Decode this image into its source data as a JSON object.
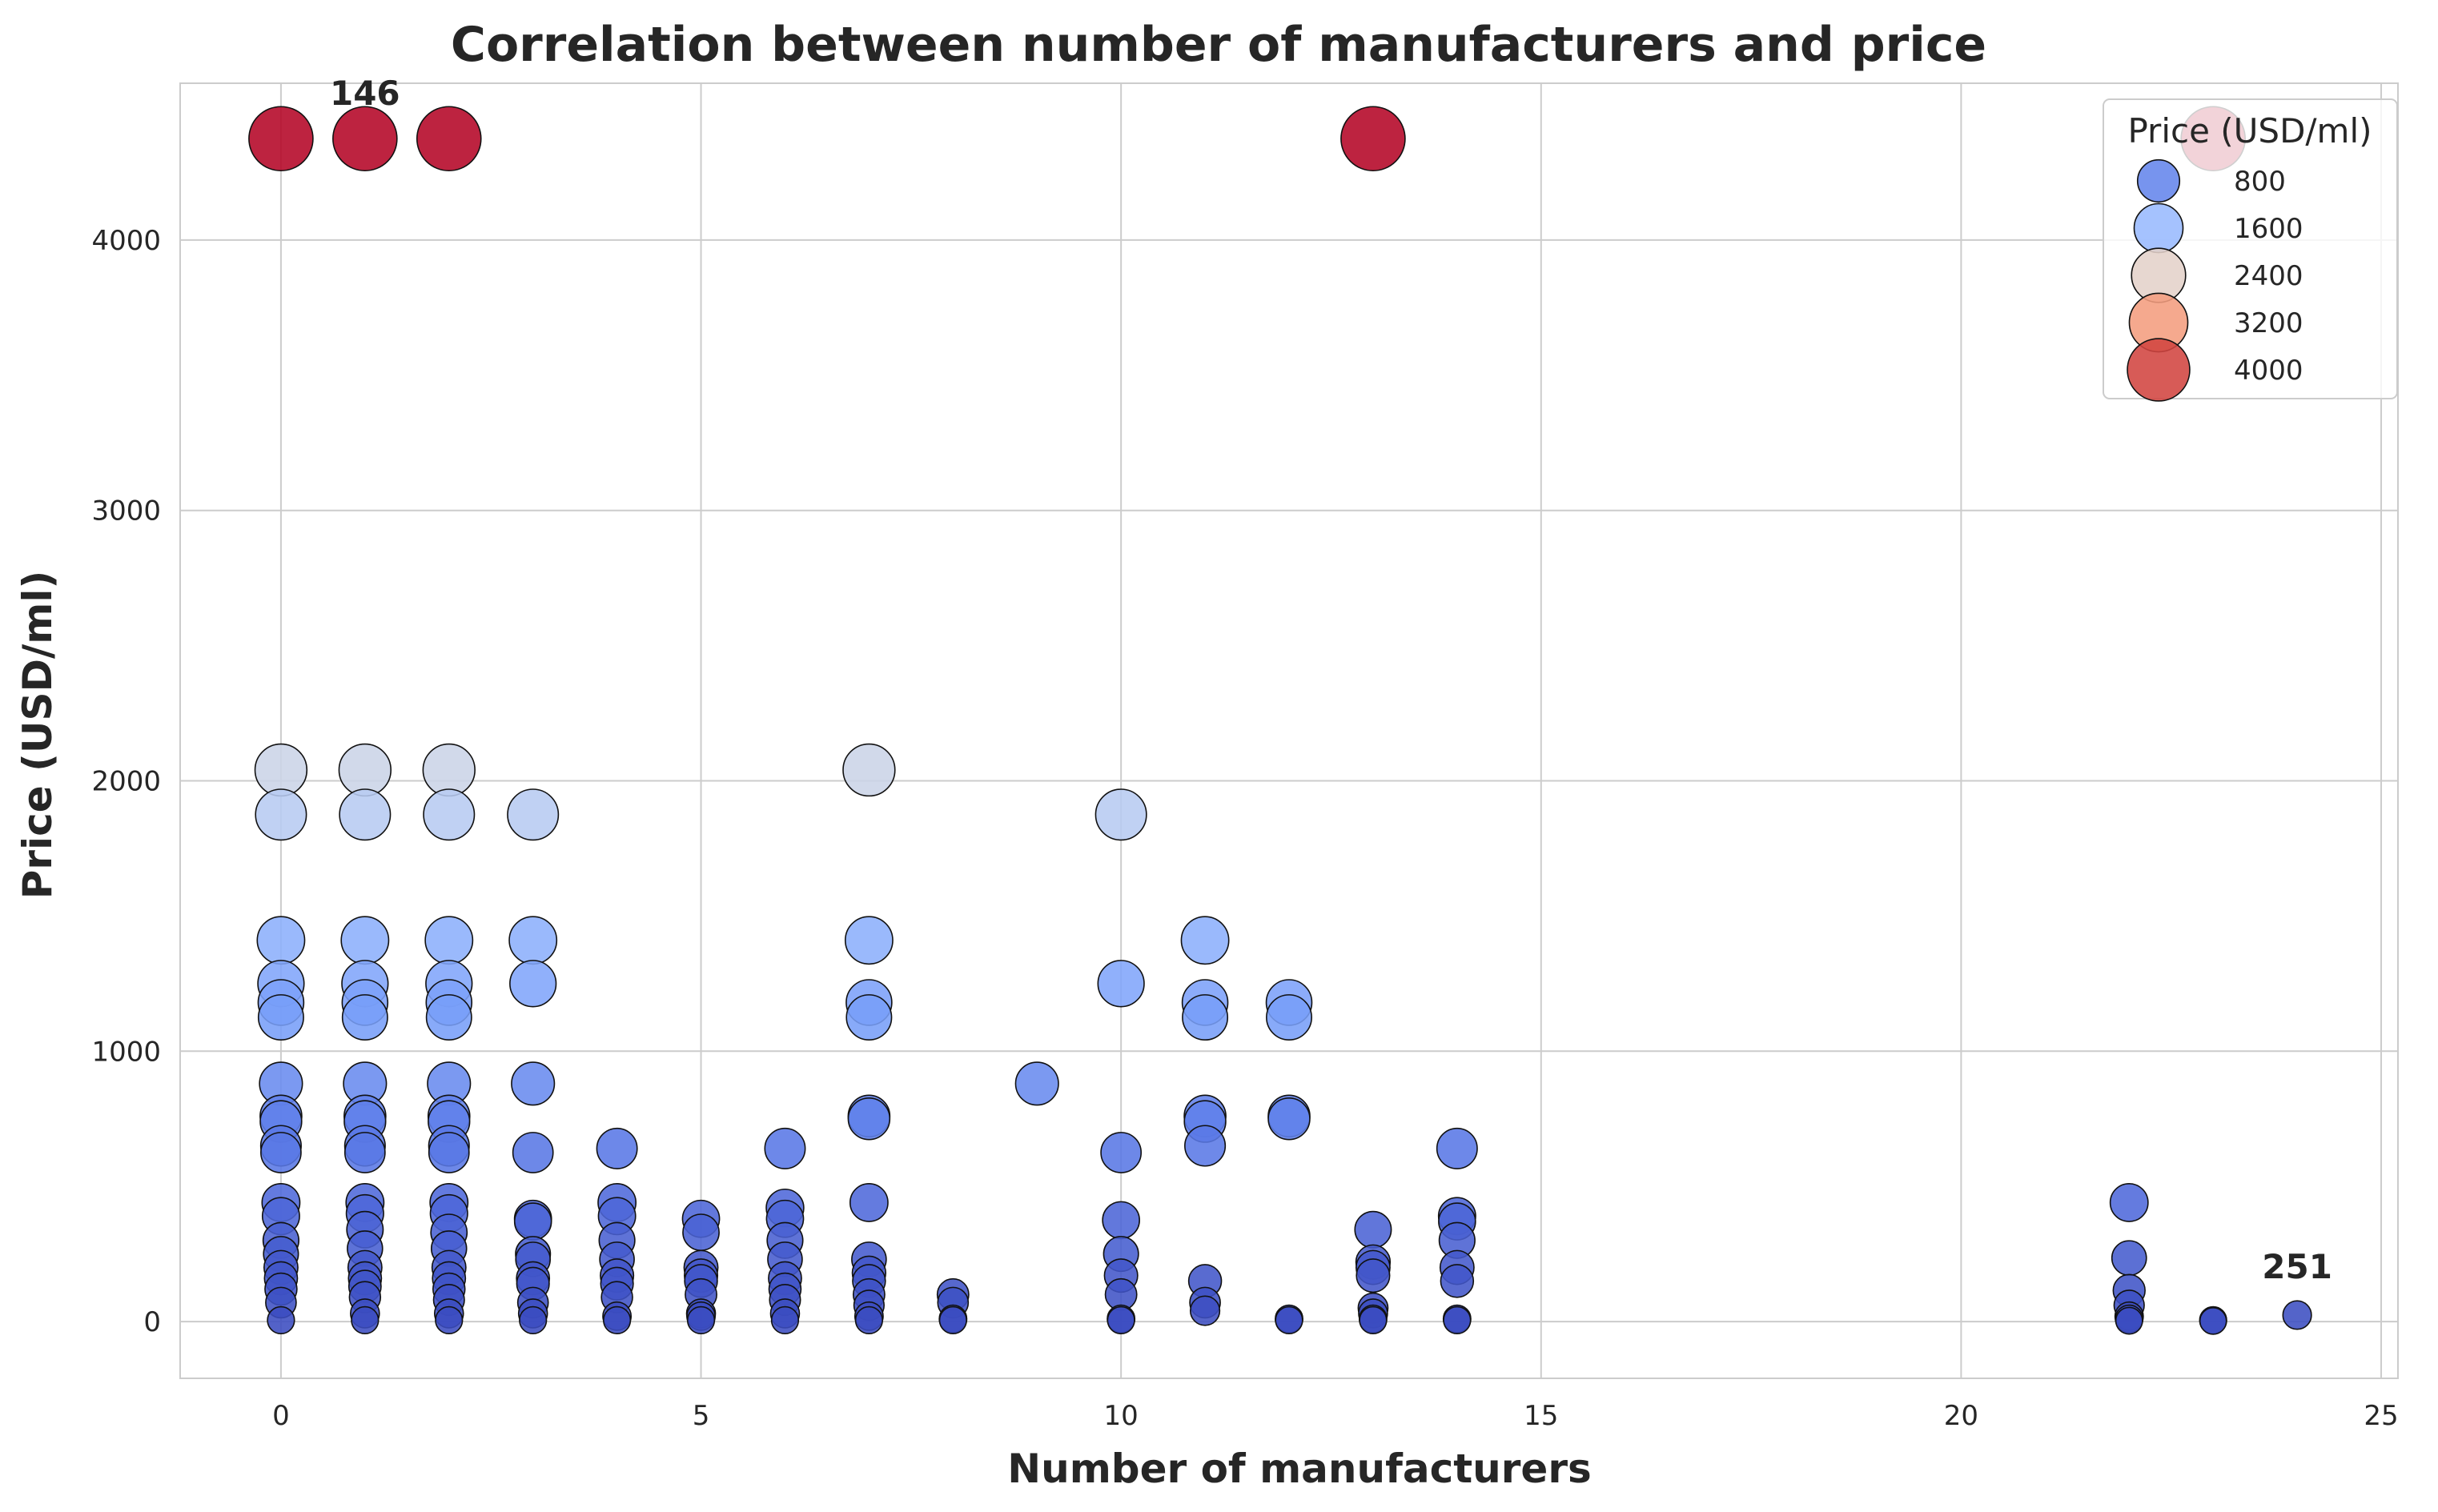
{
  "chart_data": {
    "type": "scatter",
    "title": "Correlation between number of manufacturers and price",
    "xlabel": "Number of manufacturers",
    "ylabel": "Price (USD/ml)",
    "xlim": [
      -1.2,
      25.2
    ],
    "ylim": [
      -210,
      4580
    ],
    "xticks": [
      0,
      5,
      10,
      15,
      20,
      25
    ],
    "yticks": [
      0,
      1000,
      2000,
      3000,
      4000
    ],
    "grid": true,
    "legend": {
      "title": "Price (USD/ml)",
      "placement": "top-right",
      "entries": [
        "800",
        "1600",
        "2400",
        "3200",
        "4000"
      ],
      "values": [
        800,
        1600,
        2400,
        3200,
        4000
      ]
    },
    "color_scale": {
      "name": "coolwarm",
      "min": 0,
      "max": 4375
    },
    "annotations": [
      {
        "text": "146",
        "x": 1,
        "y": 4375
      },
      {
        "text": "251",
        "x": 24,
        "y": 24
      }
    ],
    "points": [
      [
        0,
        4375
      ],
      [
        1,
        4375
      ],
      [
        2,
        4375
      ],
      [
        13,
        4375
      ],
      [
        23,
        4375
      ],
      [
        0,
        2040
      ],
      [
        1,
        2040
      ],
      [
        2,
        2040
      ],
      [
        7,
        2040
      ],
      [
        0,
        1875
      ],
      [
        1,
        1875
      ],
      [
        2,
        1875
      ],
      [
        3,
        1875
      ],
      [
        10,
        1875
      ],
      [
        0,
        1410
      ],
      [
        1,
        1410
      ],
      [
        2,
        1410
      ],
      [
        3,
        1410
      ],
      [
        7,
        1410
      ],
      [
        11,
        1410
      ],
      [
        0,
        1250
      ],
      [
        1,
        1250
      ],
      [
        2,
        1250
      ],
      [
        3,
        1250
      ],
      [
        10,
        1250
      ],
      [
        0,
        1180
      ],
      [
        1,
        1180
      ],
      [
        2,
        1180
      ],
      [
        7,
        1180
      ],
      [
        11,
        1180
      ],
      [
        12,
        1180
      ],
      [
        0,
        1125
      ],
      [
        1,
        1125
      ],
      [
        2,
        1125
      ],
      [
        7,
        1125
      ],
      [
        11,
        1125
      ],
      [
        12,
        1125
      ],
      [
        0,
        880
      ],
      [
        1,
        880
      ],
      [
        2,
        880
      ],
      [
        3,
        880
      ],
      [
        9,
        880
      ],
      [
        0,
        760
      ],
      [
        1,
        760
      ],
      [
        2,
        760
      ],
      [
        7,
        760
      ],
      [
        11,
        760
      ],
      [
        12,
        760
      ],
      [
        0,
        740
      ],
      [
        1,
        740
      ],
      [
        2,
        740
      ],
      [
        7,
        750
      ],
      [
        11,
        740
      ],
      [
        12,
        750
      ],
      [
        0,
        650
      ],
      [
        1,
        650
      ],
      [
        2,
        650
      ],
      [
        4,
        640
      ],
      [
        6,
        640
      ],
      [
        11,
        650
      ],
      [
        14,
        640
      ],
      [
        0,
        625
      ],
      [
        1,
        625
      ],
      [
        2,
        625
      ],
      [
        3,
        625
      ],
      [
        10,
        625
      ],
      [
        0,
        440
      ],
      [
        1,
        440
      ],
      [
        2,
        440
      ],
      [
        3,
        380
      ],
      [
        4,
        440
      ],
      [
        5,
        380
      ],
      [
        6,
        420
      ],
      [
        7,
        440
      ],
      [
        10,
        375
      ],
      [
        13,
        340
      ],
      [
        14,
        390
      ],
      [
        22,
        440
      ],
      [
        0,
        390
      ],
      [
        1,
        400
      ],
      [
        2,
        400
      ],
      [
        3,
        370
      ],
      [
        4,
        390
      ],
      [
        5,
        330
      ],
      [
        6,
        380
      ],
      [
        14,
        370
      ],
      [
        0,
        300
      ],
      [
        1,
        340
      ],
      [
        2,
        330
      ],
      [
        3,
        250
      ],
      [
        4,
        300
      ],
      [
        5,
        200
      ],
      [
        6,
        300
      ],
      [
        7,
        230
      ],
      [
        8,
        100
      ],
      [
        10,
        250
      ],
      [
        11,
        150
      ],
      [
        13,
        220
      ],
      [
        14,
        300
      ],
      [
        22,
        235
      ],
      [
        0,
        250
      ],
      [
        1,
        270
      ],
      [
        2,
        270
      ],
      [
        3,
        230
      ],
      [
        4,
        230
      ],
      [
        5,
        170
      ],
      [
        6,
        230
      ],
      [
        7,
        180
      ],
      [
        10,
        170
      ],
      [
        13,
        200
      ],
      [
        14,
        200
      ],
      [
        22,
        115
      ],
      [
        0,
        200
      ],
      [
        1,
        200
      ],
      [
        2,
        200
      ],
      [
        3,
        160
      ],
      [
        4,
        170
      ],
      [
        5,
        150
      ],
      [
        6,
        160
      ],
      [
        7,
        150
      ],
      [
        13,
        170
      ],
      [
        14,
        150
      ],
      [
        0,
        160
      ],
      [
        1,
        160
      ],
      [
        2,
        160
      ],
      [
        3,
        140
      ],
      [
        4,
        140
      ],
      [
        5,
        100
      ],
      [
        6,
        120
      ],
      [
        7,
        100
      ],
      [
        8,
        70
      ],
      [
        10,
        100
      ],
      [
        11,
        70
      ],
      [
        13,
        50
      ],
      [
        22,
        60
      ],
      [
        0,
        120
      ],
      [
        1,
        130
      ],
      [
        2,
        120
      ],
      [
        3,
        70
      ],
      [
        4,
        90
      ],
      [
        5,
        30
      ],
      [
        6,
        80
      ],
      [
        7,
        60
      ],
      [
        11,
        40
      ],
      [
        13,
        30
      ],
      [
        22,
        20
      ],
      [
        0,
        70
      ],
      [
        1,
        90
      ],
      [
        2,
        80
      ],
      [
        3,
        30
      ],
      [
        4,
        20
      ],
      [
        5,
        20
      ],
      [
        6,
        30
      ],
      [
        7,
        20
      ],
      [
        8,
        10
      ],
      [
        10,
        10
      ],
      [
        12,
        10
      ],
      [
        13,
        10
      ],
      [
        14,
        10
      ],
      [
        22,
        10
      ],
      [
        23,
        5
      ],
      [
        24,
        24
      ],
      [
        0,
        5
      ],
      [
        1,
        30
      ],
      [
        2,
        30
      ],
      [
        3,
        5
      ],
      [
        4,
        5
      ],
      [
        5,
        5
      ],
      [
        6,
        5
      ],
      [
        7,
        5
      ],
      [
        8,
        5
      ],
      [
        10,
        5
      ],
      [
        12,
        5
      ],
      [
        13,
        5
      ],
      [
        14,
        5
      ],
      [
        22,
        3
      ],
      [
        23,
        2
      ],
      [
        1,
        5
      ],
      [
        2,
        5
      ]
    ]
  }
}
